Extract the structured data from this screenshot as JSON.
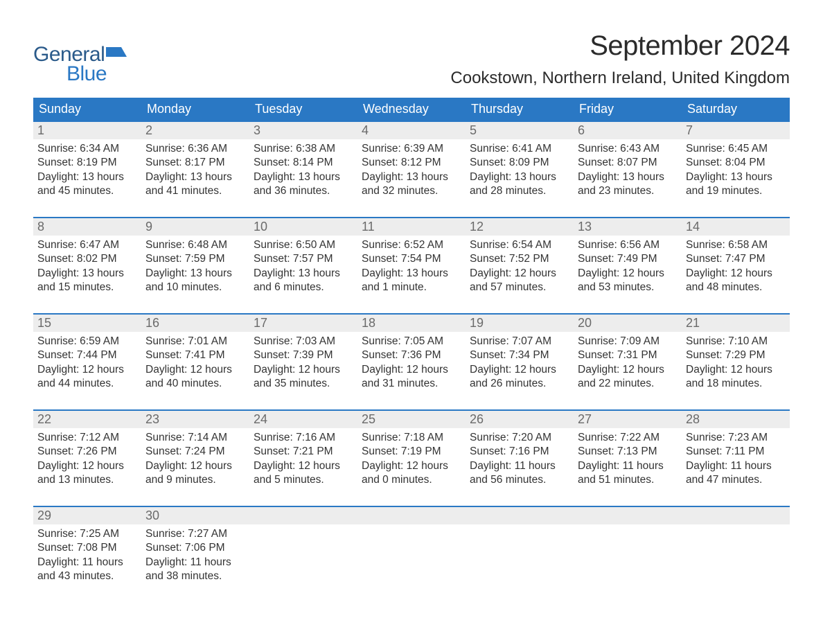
{
  "brand": {
    "word1": "General",
    "word2": "Blue",
    "flag_color": "#2a78c4",
    "word1_color": "#2a5a8a",
    "word2_color": "#2a78c4"
  },
  "title": "September 2024",
  "location": "Cookstown, Northern Ireland, United Kingdom",
  "colors": {
    "header_bg": "#2a78c4",
    "header_text": "#ffffff",
    "daynum_bg": "#ededed",
    "daynum_text": "#6a6a6a",
    "week_rule": "#2a78c4",
    "body_text": "#333333",
    "page_bg": "#ffffff"
  },
  "dow": [
    "Sunday",
    "Monday",
    "Tuesday",
    "Wednesday",
    "Thursday",
    "Friday",
    "Saturday"
  ],
  "weeks": [
    [
      {
        "n": "1",
        "sr": "Sunrise: 6:34 AM",
        "ss": "Sunset: 8:19 PM",
        "d1": "Daylight: 13 hours",
        "d2": "and 45 minutes."
      },
      {
        "n": "2",
        "sr": "Sunrise: 6:36 AM",
        "ss": "Sunset: 8:17 PM",
        "d1": "Daylight: 13 hours",
        "d2": "and 41 minutes."
      },
      {
        "n": "3",
        "sr": "Sunrise: 6:38 AM",
        "ss": "Sunset: 8:14 PM",
        "d1": "Daylight: 13 hours",
        "d2": "and 36 minutes."
      },
      {
        "n": "4",
        "sr": "Sunrise: 6:39 AM",
        "ss": "Sunset: 8:12 PM",
        "d1": "Daylight: 13 hours",
        "d2": "and 32 minutes."
      },
      {
        "n": "5",
        "sr": "Sunrise: 6:41 AM",
        "ss": "Sunset: 8:09 PM",
        "d1": "Daylight: 13 hours",
        "d2": "and 28 minutes."
      },
      {
        "n": "6",
        "sr": "Sunrise: 6:43 AM",
        "ss": "Sunset: 8:07 PM",
        "d1": "Daylight: 13 hours",
        "d2": "and 23 minutes."
      },
      {
        "n": "7",
        "sr": "Sunrise: 6:45 AM",
        "ss": "Sunset: 8:04 PM",
        "d1": "Daylight: 13 hours",
        "d2": "and 19 minutes."
      }
    ],
    [
      {
        "n": "8",
        "sr": "Sunrise: 6:47 AM",
        "ss": "Sunset: 8:02 PM",
        "d1": "Daylight: 13 hours",
        "d2": "and 15 minutes."
      },
      {
        "n": "9",
        "sr": "Sunrise: 6:48 AM",
        "ss": "Sunset: 7:59 PM",
        "d1": "Daylight: 13 hours",
        "d2": "and 10 minutes."
      },
      {
        "n": "10",
        "sr": "Sunrise: 6:50 AM",
        "ss": "Sunset: 7:57 PM",
        "d1": "Daylight: 13 hours",
        "d2": "and 6 minutes."
      },
      {
        "n": "11",
        "sr": "Sunrise: 6:52 AM",
        "ss": "Sunset: 7:54 PM",
        "d1": "Daylight: 13 hours",
        "d2": "and 1 minute."
      },
      {
        "n": "12",
        "sr": "Sunrise: 6:54 AM",
        "ss": "Sunset: 7:52 PM",
        "d1": "Daylight: 12 hours",
        "d2": "and 57 minutes."
      },
      {
        "n": "13",
        "sr": "Sunrise: 6:56 AM",
        "ss": "Sunset: 7:49 PM",
        "d1": "Daylight: 12 hours",
        "d2": "and 53 minutes."
      },
      {
        "n": "14",
        "sr": "Sunrise: 6:58 AM",
        "ss": "Sunset: 7:47 PM",
        "d1": "Daylight: 12 hours",
        "d2": "and 48 minutes."
      }
    ],
    [
      {
        "n": "15",
        "sr": "Sunrise: 6:59 AM",
        "ss": "Sunset: 7:44 PM",
        "d1": "Daylight: 12 hours",
        "d2": "and 44 minutes."
      },
      {
        "n": "16",
        "sr": "Sunrise: 7:01 AM",
        "ss": "Sunset: 7:41 PM",
        "d1": "Daylight: 12 hours",
        "d2": "and 40 minutes."
      },
      {
        "n": "17",
        "sr": "Sunrise: 7:03 AM",
        "ss": "Sunset: 7:39 PM",
        "d1": "Daylight: 12 hours",
        "d2": "and 35 minutes."
      },
      {
        "n": "18",
        "sr": "Sunrise: 7:05 AM",
        "ss": "Sunset: 7:36 PM",
        "d1": "Daylight: 12 hours",
        "d2": "and 31 minutes."
      },
      {
        "n": "19",
        "sr": "Sunrise: 7:07 AM",
        "ss": "Sunset: 7:34 PM",
        "d1": "Daylight: 12 hours",
        "d2": "and 26 minutes."
      },
      {
        "n": "20",
        "sr": "Sunrise: 7:09 AM",
        "ss": "Sunset: 7:31 PM",
        "d1": "Daylight: 12 hours",
        "d2": "and 22 minutes."
      },
      {
        "n": "21",
        "sr": "Sunrise: 7:10 AM",
        "ss": "Sunset: 7:29 PM",
        "d1": "Daylight: 12 hours",
        "d2": "and 18 minutes."
      }
    ],
    [
      {
        "n": "22",
        "sr": "Sunrise: 7:12 AM",
        "ss": "Sunset: 7:26 PM",
        "d1": "Daylight: 12 hours",
        "d2": "and 13 minutes."
      },
      {
        "n": "23",
        "sr": "Sunrise: 7:14 AM",
        "ss": "Sunset: 7:24 PM",
        "d1": "Daylight: 12 hours",
        "d2": "and 9 minutes."
      },
      {
        "n": "24",
        "sr": "Sunrise: 7:16 AM",
        "ss": "Sunset: 7:21 PM",
        "d1": "Daylight: 12 hours",
        "d2": "and 5 minutes."
      },
      {
        "n": "25",
        "sr": "Sunrise: 7:18 AM",
        "ss": "Sunset: 7:19 PM",
        "d1": "Daylight: 12 hours",
        "d2": "and 0 minutes."
      },
      {
        "n": "26",
        "sr": "Sunrise: 7:20 AM",
        "ss": "Sunset: 7:16 PM",
        "d1": "Daylight: 11 hours",
        "d2": "and 56 minutes."
      },
      {
        "n": "27",
        "sr": "Sunrise: 7:22 AM",
        "ss": "Sunset: 7:13 PM",
        "d1": "Daylight: 11 hours",
        "d2": "and 51 minutes."
      },
      {
        "n": "28",
        "sr": "Sunrise: 7:23 AM",
        "ss": "Sunset: 7:11 PM",
        "d1": "Daylight: 11 hours",
        "d2": "and 47 minutes."
      }
    ],
    [
      {
        "n": "29",
        "sr": "Sunrise: 7:25 AM",
        "ss": "Sunset: 7:08 PM",
        "d1": "Daylight: 11 hours",
        "d2": "and 43 minutes."
      },
      {
        "n": "30",
        "sr": "Sunrise: 7:27 AM",
        "ss": "Sunset: 7:06 PM",
        "d1": "Daylight: 11 hours",
        "d2": "and 38 minutes."
      },
      {
        "n": "",
        "sr": "",
        "ss": "",
        "d1": "",
        "d2": ""
      },
      {
        "n": "",
        "sr": "",
        "ss": "",
        "d1": "",
        "d2": ""
      },
      {
        "n": "",
        "sr": "",
        "ss": "",
        "d1": "",
        "d2": ""
      },
      {
        "n": "",
        "sr": "",
        "ss": "",
        "d1": "",
        "d2": ""
      },
      {
        "n": "",
        "sr": "",
        "ss": "",
        "d1": "",
        "d2": ""
      }
    ]
  ]
}
